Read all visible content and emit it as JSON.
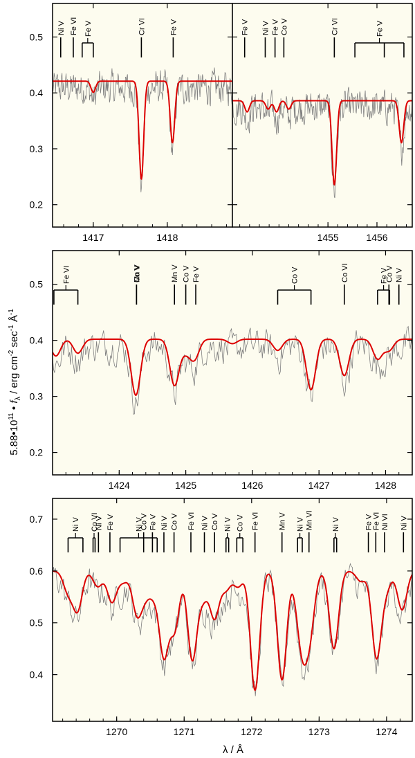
{
  "figure": {
    "ylabel_prefix": "5.88•10",
    "ylabel_exp": "11",
    "ylabel_mid": " • ",
    "ylabel_f": "f",
    "ylabel_sub": "λ",
    "ylabel_units": " / erg cm",
    "ylabel_units_exp": "-2",
    "ylabel_units2": " sec",
    "ylabel_units2_exp": "-1",
    "ylabel_units3": " Å",
    "ylabel_units3_exp": "-1",
    "xlabel": "λ / Å",
    "colors": {
      "background": "#fdfcef",
      "model": "#dd0000",
      "observed": "#808080",
      "axes": "#000000"
    }
  },
  "chart_data": [
    {
      "type": "line",
      "panel": "top-left",
      "xlim": [
        1416.45,
        1418.88
      ],
      "ylim": [
        0.16,
        0.56
      ],
      "xticks": [
        1417,
        1418
      ],
      "yticks": [
        0.2,
        0.3,
        0.4,
        0.5
      ],
      "continuum": 0.421,
      "lines": [
        {
          "ion": "Ni V",
          "x": [
            1416.56
          ]
        },
        {
          "ion": "Fe VI",
          "x": [
            1416.73
          ]
        },
        {
          "ion": "Fe V",
          "x": [
            1416.85,
            1417.0
          ]
        },
        {
          "ion": "Cr VI",
          "x": [
            1417.65
          ]
        },
        {
          "ion": "Fe V",
          "x": [
            1418.08
          ]
        }
      ],
      "model_profiles": [
        {
          "x": 1417.0,
          "depth": 0.02
        },
        {
          "x": 1417.65,
          "depth": 0.175
        },
        {
          "x": 1418.07,
          "depth": 0.11
        }
      ]
    },
    {
      "type": "line",
      "panel": "top-right",
      "xlim": [
        1453.05,
        1456.72
      ],
      "ylim": [
        0.16,
        0.56
      ],
      "xticks": [
        1455,
        1456
      ],
      "yticks": [
        0.2,
        0.3,
        0.4,
        0.5
      ],
      "continuum": 0.386,
      "lines": [
        {
          "ion": "Fe V",
          "x": [
            1453.3
          ]
        },
        {
          "ion": "Ni V",
          "x": [
            1453.72
          ]
        },
        {
          "ion": "Fe V",
          "x": [
            1453.92
          ]
        },
        {
          "ion": "Co V",
          "x": [
            1454.1
          ]
        },
        {
          "ion": "Cr VI",
          "x": [
            1455.13
          ]
        },
        {
          "ion": "Fe V",
          "x": [
            1455.55,
            1456.15,
            1456.55
          ]
        }
      ],
      "model_profiles": [
        {
          "x": 1453.35,
          "depth": 0.02
        },
        {
          "x": 1453.78,
          "depth": 0.015
        },
        {
          "x": 1453.95,
          "depth": 0.02
        },
        {
          "x": 1454.2,
          "depth": 0.015
        },
        {
          "x": 1455.13,
          "depth": 0.15
        },
        {
          "x": 1456.5,
          "depth": 0.075
        }
      ]
    },
    {
      "type": "line",
      "panel": "middle",
      "xlim": [
        1423.0,
        1428.4
      ],
      "ylim": [
        0.16,
        0.56
      ],
      "xticks": [
        1424,
        1425,
        1426,
        1427,
        1428
      ],
      "yticks": [
        0.2,
        0.3,
        0.4,
        0.5
      ],
      "continuum": 0.402,
      "lines": [
        {
          "ion": "Fe VI",
          "x": [
            1423.02,
            1423.38
          ]
        },
        {
          "ion": "Co V",
          "x": [
            1424.26
          ]
        },
        {
          "ion": "Mn V",
          "x": [
            1424.26
          ]
        },
        {
          "ion": "Mn V",
          "x": [
            1424.83
          ]
        },
        {
          "ion": "Co V",
          "x": [
            1425.0
          ]
        },
        {
          "ion": "Fe V",
          "x": [
            1425.15
          ]
        },
        {
          "ion": "Co V",
          "x": [
            1426.38,
            1426.88
          ]
        },
        {
          "ion": "Co VI",
          "x": [
            1427.38
          ]
        },
        {
          "ion": "Fe V",
          "x": [
            1427.88,
            1428.06
          ]
        },
        {
          "ion": "Co V",
          "x": [
            1428.05
          ]
        },
        {
          "ion": "Ni V",
          "x": [
            1428.2
          ]
        }
      ],
      "model_profiles": [
        {
          "x": 1423.05,
          "depth": 0.03
        },
        {
          "x": 1423.38,
          "depth": 0.025
        },
        {
          "x": 1424.25,
          "depth": 0.1
        },
        {
          "x": 1424.83,
          "depth": 0.082
        },
        {
          "x": 1425.0,
          "depth": 0.02
        },
        {
          "x": 1425.13,
          "depth": 0.035
        },
        {
          "x": 1425.7,
          "depth": 0.008
        },
        {
          "x": 1426.38,
          "depth": 0.02
        },
        {
          "x": 1426.88,
          "depth": 0.09
        },
        {
          "x": 1427.38,
          "depth": 0.065
        },
        {
          "x": 1427.88,
          "depth": 0.035
        },
        {
          "x": 1428.05,
          "depth": 0.02
        }
      ]
    },
    {
      "type": "line",
      "panel": "bottom",
      "xlim": [
        1269.05,
        1274.38
      ],
      "ylim": [
        0.31,
        0.74
      ],
      "xticks": [
        1270,
        1271,
        1272,
        1273,
        1274
      ],
      "yticks": [
        0.4,
        0.5,
        0.6,
        0.7
      ],
      "continuum": 0.6,
      "lines": [
        {
          "ion": "Ni V",
          "x": [
            1269.28,
            1269.5
          ]
        },
        {
          "ion": "Co VI",
          "x": [
            1269.65,
            1269.68
          ]
        },
        {
          "ion": "Ni V",
          "x": [
            1269.73
          ]
        },
        {
          "ion": "Fe V",
          "x": [
            1269.9
          ]
        },
        {
          "ion": "Ni V",
          "x": [
            1270.05,
            1270.6
          ]
        },
        {
          "ion": "Co V",
          "x": [
            1270.4
          ]
        },
        {
          "ion": "Fe V",
          "x": [
            1270.53
          ]
        },
        {
          "ion": "Ni V",
          "x": [
            1270.7
          ]
        },
        {
          "ion": "Co V",
          "x": [
            1270.85
          ]
        },
        {
          "ion": "Fe VI",
          "x": [
            1271.1
          ]
        },
        {
          "ion": "Ni V",
          "x": [
            1271.3
          ]
        },
        {
          "ion": "Co V",
          "x": [
            1271.45
          ]
        },
        {
          "ion": "Ni V",
          "x": [
            1271.62,
            1271.66
          ]
        },
        {
          "ion": "Co V",
          "x": [
            1271.78,
            1271.87
          ]
        },
        {
          "ion": "Fe VI",
          "x": [
            1272.05
          ]
        },
        {
          "ion": "Mn V",
          "x": [
            1272.45
          ]
        },
        {
          "ion": "Ni V",
          "x": [
            1272.68,
            1272.75
          ]
        },
        {
          "ion": "Mn VI",
          "x": [
            1272.85
          ]
        },
        {
          "ion": "Ni V",
          "x": [
            1273.22,
            1273.26
          ]
        },
        {
          "ion": "Fe V",
          "x": [
            1273.73
          ]
        },
        {
          "ion": "Fe VI",
          "x": [
            1273.84
          ]
        },
        {
          "ion": "Ni VI",
          "x": [
            1273.97
          ]
        },
        {
          "ion": "Ni V",
          "x": [
            1274.25
          ]
        }
      ],
      "model_profiles": [
        {
          "x": 1269.28,
          "depth": 0.04
        },
        {
          "x": 1269.42,
          "depth": 0.075
        },
        {
          "x": 1269.72,
          "depth": 0.03
        },
        {
          "x": 1269.93,
          "depth": 0.06
        },
        {
          "x": 1270.1,
          "depth": 0.02
        },
        {
          "x": 1270.3,
          "depth": 0.08
        },
        {
          "x": 1270.42,
          "depth": 0.04
        },
        {
          "x": 1270.55,
          "depth": 0.04
        },
        {
          "x": 1270.7,
          "depth": 0.16
        },
        {
          "x": 1270.86,
          "depth": 0.11
        },
        {
          "x": 1271.12,
          "depth": 0.17
        },
        {
          "x": 1271.28,
          "depth": 0.05
        },
        {
          "x": 1271.45,
          "depth": 0.09
        },
        {
          "x": 1271.62,
          "depth": 0.035
        },
        {
          "x": 1271.8,
          "depth": 0.03
        },
        {
          "x": 1272.05,
          "depth": 0.23
        },
        {
          "x": 1272.45,
          "depth": 0.21
        },
        {
          "x": 1272.7,
          "depth": 0.06
        },
        {
          "x": 1272.77,
          "depth": 0.11
        },
        {
          "x": 1272.87,
          "depth": 0.1
        },
        {
          "x": 1273.22,
          "depth": 0.15
        },
        {
          "x": 1273.62,
          "depth": 0.02
        },
        {
          "x": 1273.85,
          "depth": 0.165
        },
        {
          "x": 1273.99,
          "depth": 0.035
        },
        {
          "x": 1274.23,
          "depth": 0.075
        }
      ]
    }
  ]
}
